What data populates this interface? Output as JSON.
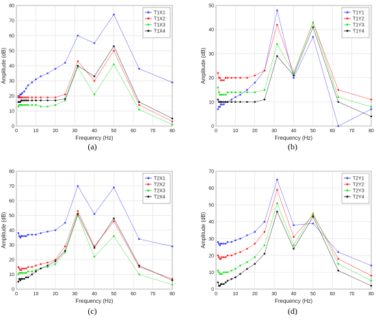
{
  "chart_data": [
    {
      "type": "line",
      "panel": "(a)",
      "xlabel": "Frequency (Hz)",
      "ylabel": "Amplitude (dB)",
      "xlim": [
        0,
        80
      ],
      "ylim": [
        0,
        80
      ],
      "xticks": [
        0,
        10,
        20,
        30,
        40,
        50,
        60,
        70,
        80
      ],
      "yticks": [
        0,
        10,
        20,
        30,
        40,
        50,
        60,
        70,
        80
      ],
      "grid": true,
      "legend_position": "top-right",
      "series": [
        {
          "name": "T1X1",
          "color": "#3b3bff",
          "x": [
            1,
            1.5,
            2,
            2.5,
            3,
            4,
            5,
            6,
            8,
            10,
            12.5,
            16,
            20,
            25,
            31.5,
            40,
            50,
            63,
            80
          ],
          "y": [
            19,
            20,
            21,
            21,
            22,
            23,
            25,
            27,
            29,
            31,
            33,
            35,
            38,
            42,
            60,
            55,
            74,
            38,
            29
          ]
        },
        {
          "name": "T1X2",
          "color": "#ff2020",
          "x": [
            1,
            1.5,
            2,
            2.5,
            3,
            4,
            5,
            6,
            8,
            10,
            12.5,
            16,
            20,
            25,
            31.5,
            40,
            50,
            63,
            80
          ],
          "y": [
            20,
            19,
            19,
            19,
            19,
            19,
            19,
            19,
            19,
            19,
            19,
            19,
            19,
            21,
            43,
            30,
            50,
            14,
            3
          ]
        },
        {
          "name": "T1X3",
          "color": "#22dd22",
          "x": [
            1,
            1.5,
            2,
            2.5,
            3,
            4,
            5,
            6,
            8,
            10,
            12.5,
            16,
            20,
            25,
            31.5,
            40,
            50,
            63,
            80
          ],
          "y": [
            13,
            14,
            14,
            14,
            14,
            14,
            14,
            14,
            14,
            14,
            13,
            13,
            14,
            17,
            39,
            21,
            41,
            11,
            1
          ]
        },
        {
          "name": "T1X4",
          "color": "#111111",
          "x": [
            1,
            1.5,
            2,
            2.5,
            3,
            4,
            5,
            6,
            8,
            10,
            12.5,
            16,
            20,
            25,
            31.5,
            40,
            50,
            63,
            80
          ],
          "y": [
            16,
            16,
            16,
            17,
            17,
            17,
            17,
            17,
            17,
            17,
            17,
            17,
            17,
            18,
            40,
            33,
            53,
            16,
            5
          ]
        }
      ]
    },
    {
      "type": "line",
      "panel": "(b)",
      "xlabel": "Frequency (Hz)",
      "ylabel": "Amplitude (dB)",
      "xlim": [
        0,
        80
      ],
      "ylim": [
        0,
        50
      ],
      "xticks": [
        0,
        10,
        20,
        30,
        40,
        50,
        60,
        70,
        80
      ],
      "yticks": [
        0,
        10,
        20,
        30,
        40,
        50
      ],
      "grid": true,
      "legend_position": "top-right",
      "series": [
        {
          "name": "T1Y1",
          "color": "#3b3bff",
          "x": [
            1,
            1.5,
            2,
            2.5,
            3,
            4,
            5,
            6,
            8,
            10,
            12.5,
            16,
            20,
            25,
            31.5,
            40,
            50,
            63,
            80
          ],
          "y": [
            7,
            8,
            8,
            9,
            9,
            9,
            10,
            10,
            11,
            12,
            13,
            15,
            18,
            23,
            48,
            20,
            37,
            0,
            7
          ]
        },
        {
          "name": "T1Y2",
          "color": "#ff2020",
          "x": [
            1,
            1.5,
            2,
            2.5,
            3,
            4,
            5,
            6,
            8,
            10,
            12.5,
            16,
            20,
            25,
            31.5,
            40,
            50,
            63,
            80
          ],
          "y": [
            22,
            20,
            20,
            19,
            19,
            19,
            20,
            20,
            20,
            20,
            20,
            20,
            21,
            23,
            42,
            22,
            43,
            15,
            11
          ]
        },
        {
          "name": "T1Y3",
          "color": "#22dd22",
          "x": [
            1,
            1.5,
            2,
            2.5,
            3,
            4,
            5,
            6,
            8,
            10,
            12.5,
            16,
            20,
            25,
            31.5,
            40,
            50,
            63,
            80
          ],
          "y": [
            16,
            14,
            13,
            13,
            13,
            13,
            13,
            14,
            14,
            14,
            14,
            14,
            14,
            15,
            34,
            22,
            43,
            12,
            8
          ]
        },
        {
          "name": "T1Y4",
          "color": "#111111",
          "x": [
            1,
            1.5,
            2,
            2.5,
            3,
            4,
            5,
            6,
            8,
            10,
            12.5,
            16,
            20,
            25,
            31.5,
            40,
            50,
            63,
            80
          ],
          "y": [
            11,
            10,
            10,
            10,
            10,
            10,
            10,
            10,
            10,
            10,
            10,
            10,
            10,
            11,
            29,
            21,
            41,
            10,
            4
          ]
        }
      ]
    },
    {
      "type": "line",
      "panel": "(c)",
      "xlabel": "Frequency (Hz)",
      "ylabel": "Amplitude (dB)",
      "xlim": [
        0,
        80
      ],
      "ylim": [
        0,
        80
      ],
      "xticks": [
        0,
        10,
        20,
        30,
        40,
        50,
        60,
        70,
        80
      ],
      "yticks": [
        0,
        10,
        20,
        30,
        40,
        50,
        60,
        70,
        80
      ],
      "grid": true,
      "legend_position": "top-right",
      "series": [
        {
          "name": "T2X1",
          "color": "#3b3bff",
          "x": [
            1,
            1.5,
            2,
            2.5,
            3,
            4,
            5,
            6,
            8,
            10,
            12.5,
            16,
            20,
            25,
            31.5,
            40,
            50,
            63,
            80
          ],
          "y": [
            38,
            36,
            35,
            36,
            36,
            36,
            36,
            37,
            37,
            37,
            38,
            39,
            40,
            45,
            70,
            51,
            69,
            34,
            29
          ]
        },
        {
          "name": "T2X2",
          "color": "#ff2020",
          "x": [
            1,
            1.5,
            2,
            2.5,
            3,
            4,
            5,
            6,
            8,
            10,
            12.5,
            16,
            20,
            25,
            31.5,
            40,
            50,
            63,
            80
          ],
          "y": [
            15,
            14,
            13,
            13,
            14,
            14,
            14,
            15,
            15,
            16,
            17,
            18,
            20,
            29,
            53,
            29,
            46,
            15,
            7
          ]
        },
        {
          "name": "T2X3",
          "color": "#22dd22",
          "x": [
            1,
            1.5,
            2,
            2.5,
            3,
            4,
            5,
            6,
            8,
            10,
            12.5,
            16,
            20,
            25,
            31.5,
            40,
            50,
            63,
            80
          ],
          "y": [
            10,
            11,
            11,
            11,
            11,
            11,
            11,
            12,
            12,
            13,
            14,
            15,
            17,
            25,
            50,
            22,
            36,
            10,
            3
          ]
        },
        {
          "name": "T2X4",
          "color": "#111111",
          "x": [
            1,
            1.5,
            2,
            2.5,
            3,
            4,
            5,
            6,
            8,
            10,
            12.5,
            16,
            20,
            25,
            31.5,
            40,
            50,
            63,
            80
          ],
          "y": [
            5,
            7,
            6,
            7,
            7,
            7,
            8,
            8,
            10,
            12,
            14,
            16,
            19,
            26,
            51,
            28,
            48,
            16,
            6
          ]
        }
      ]
    },
    {
      "type": "line",
      "panel": "(d)",
      "xlabel": "Frequency (Hz)",
      "ylabel": "Amplitude (dB)",
      "xlim": [
        0,
        80
      ],
      "ylim": [
        0,
        70
      ],
      "xticks": [
        0,
        10,
        20,
        30,
        40,
        50,
        60,
        70,
        80
      ],
      "yticks": [
        0,
        10,
        20,
        30,
        40,
        50,
        60,
        70
      ],
      "grid": true,
      "legend_position": "top-right",
      "series": [
        {
          "name": "T2Y1",
          "color": "#3b3bff",
          "x": [
            1,
            1.5,
            2,
            2.5,
            3,
            4,
            5,
            6,
            8,
            10,
            12.5,
            16,
            20,
            25,
            31.5,
            40,
            50,
            63,
            80
          ],
          "y": [
            28,
            27,
            26,
            27,
            27,
            27,
            27,
            28,
            28,
            29,
            30,
            32,
            34,
            40,
            65,
            38,
            39,
            22,
            14
          ]
        },
        {
          "name": "T2Y2",
          "color": "#ff2020",
          "x": [
            1,
            1.5,
            2,
            2.5,
            3,
            4,
            5,
            6,
            8,
            10,
            12.5,
            16,
            20,
            25,
            31.5,
            40,
            50,
            63,
            80
          ],
          "y": [
            20,
            19,
            18,
            18,
            19,
            19,
            19,
            20,
            20,
            21,
            22,
            24,
            27,
            34,
            59,
            31,
            44,
            18,
            8
          ]
        },
        {
          "name": "T2Y3",
          "color": "#22dd22",
          "x": [
            1,
            1.5,
            2,
            2.5,
            3,
            4,
            5,
            6,
            8,
            10,
            12.5,
            16,
            20,
            25,
            31.5,
            40,
            50,
            63,
            80
          ],
          "y": [
            11,
            10,
            9,
            9,
            9,
            10,
            10,
            10,
            11,
            12,
            14,
            16,
            19,
            26,
            51,
            26,
            45,
            15,
            5
          ]
        },
        {
          "name": "T2Y4",
          "color": "#111111",
          "x": [
            1,
            1.5,
            2,
            2.5,
            3,
            4,
            5,
            6,
            8,
            10,
            12.5,
            16,
            20,
            25,
            31.5,
            40,
            50,
            63,
            80
          ],
          "y": [
            4,
            2,
            2,
            3,
            3,
            3,
            4,
            5,
            6,
            7,
            9,
            12,
            15,
            21,
            46,
            24,
            43,
            11,
            2
          ]
        }
      ]
    }
  ]
}
